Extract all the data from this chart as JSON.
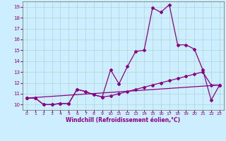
{
  "xlabel": "Windchill (Refroidissement éolien,°C)",
  "xlim": [
    -0.5,
    23.5
  ],
  "ylim": [
    9.5,
    19.5
  ],
  "xticks": [
    0,
    1,
    2,
    3,
    4,
    5,
    6,
    7,
    8,
    9,
    10,
    11,
    12,
    13,
    14,
    15,
    16,
    17,
    18,
    19,
    20,
    21,
    22,
    23
  ],
  "yticks": [
    10,
    11,
    12,
    13,
    14,
    15,
    16,
    17,
    18,
    19
  ],
  "bg_color": "#cceeff",
  "line_color": "#880088",
  "line1_x": [
    0,
    1,
    2,
    3,
    4,
    5,
    6,
    7,
    8,
    9,
    10,
    11,
    12,
    13,
    14,
    15,
    16,
    17,
    18,
    19,
    20,
    21,
    22,
    23
  ],
  "line1_y": [
    10.6,
    10.6,
    10.0,
    10.0,
    10.1,
    10.1,
    11.4,
    11.2,
    10.9,
    10.7,
    13.2,
    11.9,
    13.5,
    14.9,
    15.0,
    18.9,
    18.5,
    19.2,
    15.5,
    15.5,
    15.1,
    13.2,
    10.4,
    11.8
  ],
  "line2_x": [
    0,
    1,
    2,
    3,
    4,
    5,
    6,
    7,
    8,
    9,
    10,
    11,
    12,
    13,
    14,
    15,
    16,
    17,
    18,
    19,
    20,
    21,
    22,
    23
  ],
  "line2_y": [
    10.6,
    10.6,
    10.0,
    10.0,
    10.1,
    10.1,
    11.4,
    11.2,
    10.9,
    10.7,
    10.8,
    11.0,
    11.2,
    11.4,
    11.6,
    11.8,
    12.0,
    12.2,
    12.4,
    12.6,
    12.8,
    13.0,
    11.8,
    11.8
  ],
  "line3_x": [
    0,
    23
  ],
  "line3_y": [
    10.6,
    11.8
  ]
}
